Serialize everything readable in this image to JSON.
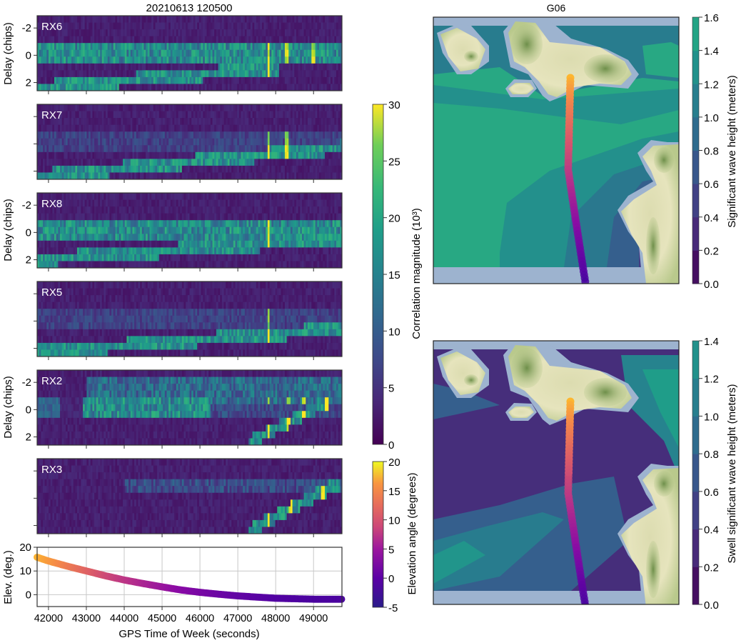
{
  "chart_data": [
    {
      "type": "heatmap",
      "title": "20210613 120500",
      "xlabel": "GPS Time of Week (seconds)",
      "ylabel": "Delay (chips)",
      "xlim": [
        41700,
        49750
      ],
      "ylim": [
        2.6,
        -2.9
      ],
      "yticks": [
        "-2",
        "0",
        "2"
      ],
      "ytick_values": [
        -2,
        0,
        2
      ],
      "xtick_values": [
        42000,
        43000,
        44000,
        45000,
        46000,
        47000,
        48000,
        49000
      ],
      "panels": [
        {
          "label": "RX6",
          "show_ytick_labels": true,
          "direct_band": true,
          "reflect_start": [
            41700,
            2.4
          ],
          "reflect_end": [
            47800,
            1.0
          ],
          "spike_x": [
            47800,
            48300,
            49000
          ]
        },
        {
          "label": "RX7",
          "show_ytick_labels": false,
          "direct_band": false,
          "reflect_start": [
            41700,
            2.4
          ],
          "reflect_end": [
            49700,
            0.3
          ],
          "spike_x": [
            47800,
            48300
          ]
        },
        {
          "label": "RX8",
          "show_ytick_labels": true,
          "direct_band": true,
          "reflect_start": [
            41700,
            2.0
          ],
          "reflect_end": [
            49700,
            0.5
          ],
          "spike_x": [
            47800
          ]
        },
        {
          "label": "RX5",
          "show_ytick_labels": false,
          "direct_band": false,
          "reflect_start": [
            41700,
            2.3
          ],
          "reflect_end": [
            49700,
            0.6
          ],
          "spike_x": [
            47800
          ]
        },
        {
          "label": "RX2",
          "show_ytick_labels": true,
          "direct_band": true,
          "reflect_start": [
            47300,
            2.4
          ],
          "reflect_end": [
            49400,
            -0.6
          ],
          "spike_x": [
            47800,
            48350,
            48750,
            49350
          ]
        },
        {
          "label": "RX3",
          "show_ytick_labels": false,
          "direct_band": false,
          "reflect_start": [
            47300,
            2.4
          ],
          "reflect_end": [
            49600,
            -1.0
          ],
          "spike_x": [
            47800,
            48400,
            49250
          ]
        }
      ],
      "colorbar": {
        "label": "Correlation magnitude (10³)",
        "range": [
          0,
          30
        ],
        "ticks": [
          "0",
          "5",
          "10",
          "15",
          "20",
          "25",
          "30"
        ],
        "colormap": "viridis"
      }
    },
    {
      "type": "scatter",
      "xlabel": "GPS Time of Week (seconds)",
      "ylabel": "Elev. (deg.)",
      "xlim": [
        41700,
        49750
      ],
      "ylim": [
        -5,
        20
      ],
      "grid": true,
      "xticks": [
        "42000",
        "43000",
        "44000",
        "45000",
        "46000",
        "47000",
        "48000",
        "49000"
      ],
      "yticks": [
        "0",
        "10",
        "20"
      ],
      "x": [
        41700,
        42000,
        42500,
        43000,
        43500,
        44000,
        44500,
        45000,
        45500,
        46000,
        46500,
        47000,
        47500,
        48000,
        48500,
        49000,
        49500,
        49750
      ],
      "y": [
        15.8,
        14.2,
        12.0,
        10.0,
        8.0,
        6.2,
        4.7,
        3.3,
        2.0,
        1.0,
        0.2,
        -0.5,
        -1.0,
        -1.5,
        -1.7,
        -1.9,
        -1.9,
        -1.9
      ],
      "colorbar": {
        "label": "Elevation angle (degrees)",
        "range": [
          -5,
          20
        ],
        "ticks": [
          "-5",
          "0",
          "5",
          "10",
          "15",
          "20"
        ],
        "colormap": "plasma"
      }
    },
    {
      "type": "heatmap",
      "title": "G06",
      "description_type": "map",
      "track_elevation_range": [
        -2,
        16
      ],
      "colorbar": {
        "label": "Significant wave height (meters)",
        "range": [
          0,
          1.6
        ],
        "ticks": [
          "0.0",
          "0.2",
          "0.4",
          "0.6",
          "0.8",
          "1.0",
          "1.2",
          "1.4",
          "1.6"
        ],
        "colormap": "viridis"
      }
    },
    {
      "type": "heatmap",
      "description_type": "map",
      "track_elevation_range": [
        -2,
        16
      ],
      "colorbar": {
        "label": "Swell significant wave height (meters)",
        "range": [
          0,
          1.4
        ],
        "ticks": [
          "0.0",
          "0.2",
          "0.4",
          "0.6",
          "0.8",
          "1.0",
          "1.2",
          "1.4"
        ],
        "colormap": "viridis"
      }
    }
  ]
}
